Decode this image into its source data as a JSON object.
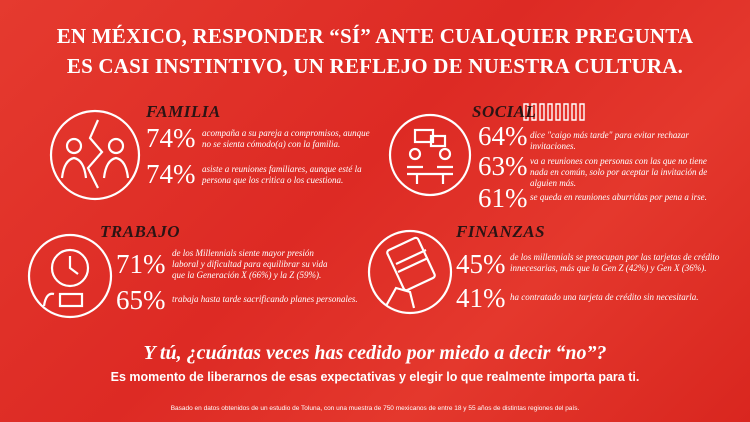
{
  "title": {
    "lines": [
      "EN MÉXICO, RESPONDER “SÍ” ANTE CUALQUIER PREGUNTA",
      "ES CASI INSTINTIVO, UN REFLEJO DE NUESTRA CULTURA."
    ]
  },
  "sections": [
    {
      "heading": "FAMILIA",
      "stats": [
        {
          "percent": "74%",
          "text": "acompaña a su pareja a compromisos, aunque no se sienta cómodo(a) con la familia."
        },
        {
          "percent": "74%",
          "text": "asiste a reuniones familiares, aunque esté la persona que los critica o los cuestiona."
        }
      ]
    },
    {
      "heading": "SOCIAL",
      "stats": [
        {
          "percent": "64%",
          "text": "dice \"caigo más tarde\" para evitar rechazar invitaciones."
        },
        {
          "percent": "63%",
          "text": "va a reuniones con personas con las que no tiene nada en común, solo por aceptar la invitación de alguien más."
        },
        {
          "percent": "61%",
          "text": "se queda en reuniones aburridas por pena a irse."
        }
      ]
    },
    {
      "heading": "TRABAJO",
      "stats": [
        {
          "percent": "71%",
          "text": "de los Millennials siente mayor presión laboral y dificultad para equilibrar su vida que la Generación X (66%) y la Z (59%)."
        },
        {
          "percent": "65%",
          "text": "trabaja hasta tarde sacrificando planes personales."
        }
      ]
    },
    {
      "heading": "FINANZAS",
      "stats": [
        {
          "percent": "45%",
          "text": "de los millennials se preocupan por las tarjetas de crédito innecesarias, más que la Gen Z (42%) y Gen X (36%)."
        },
        {
          "percent": "41%",
          "text": "ha contratado una tarjeta de crédito sin necesitarla."
        }
      ]
    }
  ],
  "question": "Y tú, ¿cuántas veces has cedido por miedo a decir “no”?",
  "subtitle": "Es momento de liberarnos de esas expectativas y elegir lo que realmente importa para ti.",
  "footnote": "Basado en datos obtenidos de un estudio de Toluna, con una muestra de 750 mexicanos de entre 18 y 55 años de distintas regiones del país."
}
